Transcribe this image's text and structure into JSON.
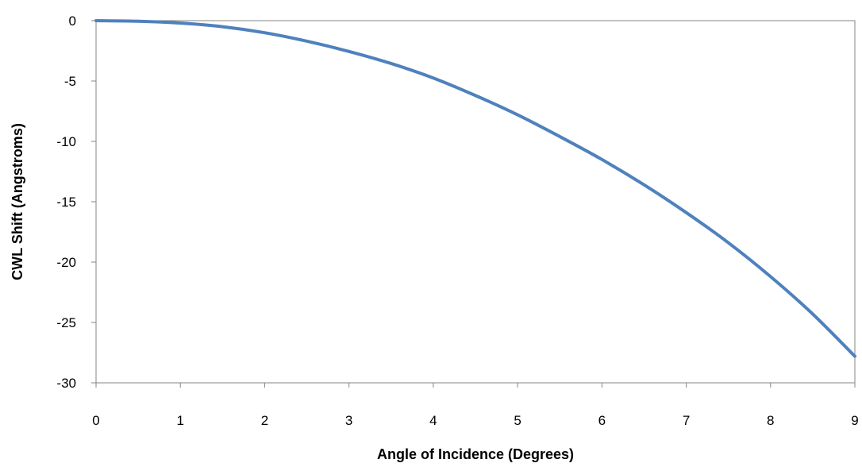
{
  "chart_data": {
    "type": "line",
    "title": "",
    "xlabel": "Angle of Incidence (Degrees)",
    "ylabel": "CWL Shift (Angstroms)",
    "xlim": [
      0,
      9
    ],
    "ylim": [
      -30,
      0
    ],
    "x_ticks": [
      "0",
      "1",
      "2",
      "3",
      "4",
      "5",
      "6",
      "7",
      "8",
      "9"
    ],
    "y_ticks": [
      "0",
      "-5",
      "-10",
      "-15",
      "-20",
      "-25",
      "-30"
    ],
    "grid": false,
    "legend": "none",
    "series": [
      {
        "color": "#4f81bd",
        "x": [
          0,
          0.5,
          1,
          1.5,
          2,
          2.5,
          3,
          3.5,
          4,
          4.5,
          5,
          5.5,
          6,
          6.5,
          7,
          7.5,
          8,
          8.5,
          9
        ],
        "y": [
          0,
          -0.05,
          -0.2,
          -0.5,
          -1.0,
          -1.7,
          -2.55,
          -3.55,
          -4.75,
          -6.2,
          -7.8,
          -9.6,
          -11.5,
          -13.6,
          -15.9,
          -18.4,
          -21.2,
          -24.3,
          -27.8
        ]
      }
    ]
  }
}
